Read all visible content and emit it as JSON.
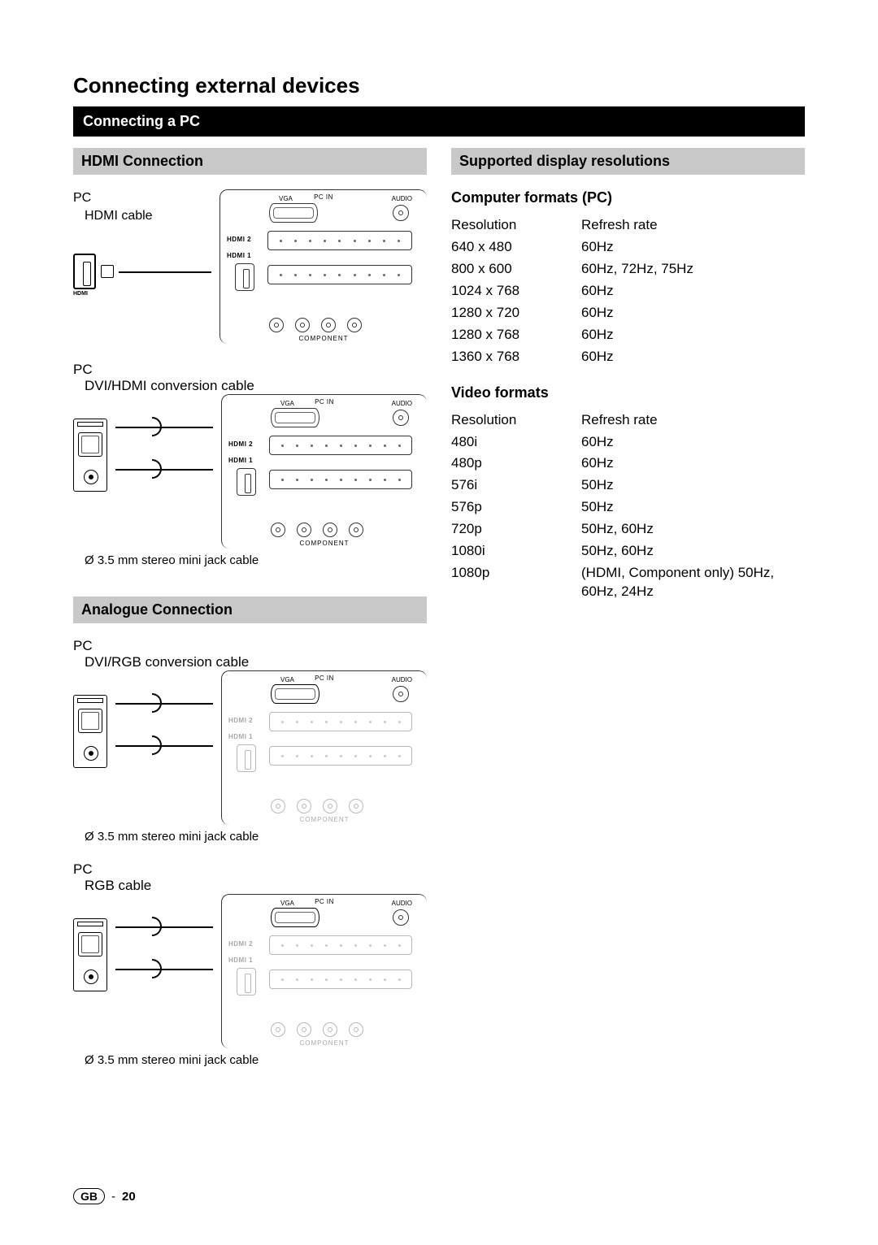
{
  "page": {
    "title": "Connecting external devices",
    "section_bar": "Connecting a PC",
    "footer_region": "GB",
    "footer_page": "20"
  },
  "left": {
    "hdmi_heading": "HDMI Connection",
    "analogue_heading": "Analogue Connection",
    "pc_label": "PC",
    "hdmi_cable": "HDMI cable",
    "dvi_hdmi_cable": "DVI/HDMI conversion cable",
    "dvi_rgb_cable": "DVI/RGB conversion cable",
    "rgb_cable": "RGB cable",
    "jack_note": "Ø 3.5 mm stereo mini jack cable",
    "jack_note_short": "Ø 3.5 mm stereo mini jack cable",
    "hdmi_port_tag": "HDMI"
  },
  "right": {
    "supported_heading": "Supported display resolutions",
    "computer_heading": "Computer formats (PC)",
    "video_heading": "Video formats",
    "col_res": "Resolution",
    "col_rate": "Refresh rate",
    "computer_rows": [
      {
        "res": "640 x 480",
        "rate": "60Hz"
      },
      {
        "res": "800 x 600",
        "rate": "60Hz, 72Hz, 75Hz"
      },
      {
        "res": "1024 x 768",
        "rate": "60Hz"
      },
      {
        "res": "1280 x 720",
        "rate": "60Hz"
      },
      {
        "res": "1280 x 768",
        "rate": "60Hz"
      },
      {
        "res": "1360 x 768",
        "rate": "60Hz"
      }
    ],
    "video_rows": [
      {
        "res": "480i",
        "rate": "60Hz"
      },
      {
        "res": "480p",
        "rate": "60Hz"
      },
      {
        "res": "576i",
        "rate": "50Hz"
      },
      {
        "res": "576p",
        "rate": "50Hz"
      },
      {
        "res": "720p",
        "rate": "50Hz, 60Hz"
      },
      {
        "res": "1080i",
        "rate": "50Hz, 60Hz"
      },
      {
        "res": "1080p",
        "rate": "(HDMI, Component only) 50Hz, 60Hz, 24Hz"
      }
    ]
  },
  "panel": {
    "pc_in": "PC IN",
    "vga": "VGA",
    "audio": "AUDIO",
    "hdmi2": "HDMI 2",
    "hdmi1": "HDMI 1",
    "component": "COMPONENT"
  },
  "style": {
    "black": "#000000",
    "gray_bar": "#c8c8c8",
    "text": "#000000"
  }
}
